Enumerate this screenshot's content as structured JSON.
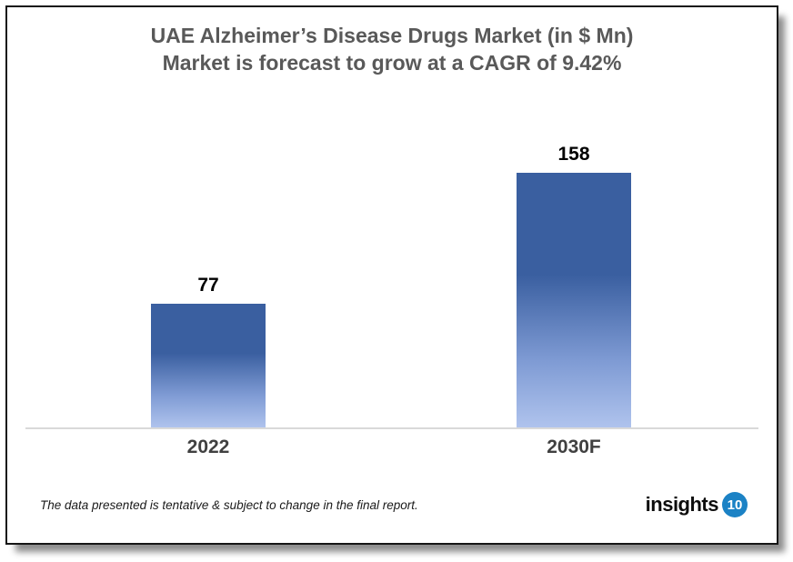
{
  "chart_data": {
    "type": "bar",
    "title": "UAE Alzheimer’s Disease Drugs Market (in $ Mn)",
    "subtitle": "Market is forecast to grow at a CAGR of 9.42%",
    "categories": [
      "2022",
      "2030F"
    ],
    "values": [
      77,
      158
    ],
    "xlabel": "",
    "ylabel": "",
    "ylim": [
      0,
      160
    ],
    "grid": false,
    "legend": "none",
    "bar_gradient": {
      "top": "#3A5FA0",
      "mid": "#7F9BD4",
      "bottom": "#AFC3ED"
    },
    "axis_line_color": "#D9D9D9",
    "title_color": "#595959",
    "category_label_color": "#404040",
    "value_label_color": "#000000"
  },
  "footer": {
    "disclaimer": "The data presented is tentative & subject to change in the final report.",
    "logo_text": "insights",
    "logo_badge": "10",
    "logo_badge_color": "#1B82C5"
  }
}
